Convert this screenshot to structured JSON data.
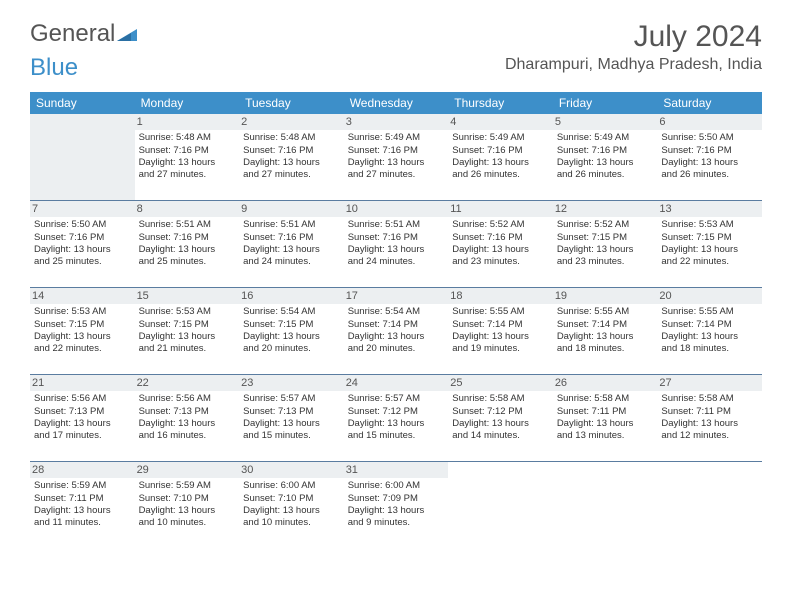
{
  "logo": {
    "text1": "General",
    "text2": "Blue"
  },
  "title": "July 2024",
  "location": "Dharampuri, Madhya Pradesh, India",
  "colors": {
    "header_bg": "#3d8fc9",
    "header_text": "#ffffff",
    "daynum_bg": "#eceff1",
    "border": "#5a7ca0",
    "text": "#333333",
    "title_text": "#555555"
  },
  "fonts": {
    "title_size_pt": 22,
    "location_size_pt": 12,
    "dayheader_size_pt": 9,
    "cell_size_pt": 7
  },
  "day_headers": [
    "Sunday",
    "Monday",
    "Tuesday",
    "Wednesday",
    "Thursday",
    "Friday",
    "Saturday"
  ],
  "weeks": [
    [
      null,
      {
        "n": "1",
        "sr": "Sunrise: 5:48 AM",
        "ss": "Sunset: 7:16 PM",
        "d1": "Daylight: 13 hours",
        "d2": "and 27 minutes."
      },
      {
        "n": "2",
        "sr": "Sunrise: 5:48 AM",
        "ss": "Sunset: 7:16 PM",
        "d1": "Daylight: 13 hours",
        "d2": "and 27 minutes."
      },
      {
        "n": "3",
        "sr": "Sunrise: 5:49 AM",
        "ss": "Sunset: 7:16 PM",
        "d1": "Daylight: 13 hours",
        "d2": "and 27 minutes."
      },
      {
        "n": "4",
        "sr": "Sunrise: 5:49 AM",
        "ss": "Sunset: 7:16 PM",
        "d1": "Daylight: 13 hours",
        "d2": "and 26 minutes."
      },
      {
        "n": "5",
        "sr": "Sunrise: 5:49 AM",
        "ss": "Sunset: 7:16 PM",
        "d1": "Daylight: 13 hours",
        "d2": "and 26 minutes."
      },
      {
        "n": "6",
        "sr": "Sunrise: 5:50 AM",
        "ss": "Sunset: 7:16 PM",
        "d1": "Daylight: 13 hours",
        "d2": "and 26 minutes."
      }
    ],
    [
      {
        "n": "7",
        "sr": "Sunrise: 5:50 AM",
        "ss": "Sunset: 7:16 PM",
        "d1": "Daylight: 13 hours",
        "d2": "and 25 minutes."
      },
      {
        "n": "8",
        "sr": "Sunrise: 5:51 AM",
        "ss": "Sunset: 7:16 PM",
        "d1": "Daylight: 13 hours",
        "d2": "and 25 minutes."
      },
      {
        "n": "9",
        "sr": "Sunrise: 5:51 AM",
        "ss": "Sunset: 7:16 PM",
        "d1": "Daylight: 13 hours",
        "d2": "and 24 minutes."
      },
      {
        "n": "10",
        "sr": "Sunrise: 5:51 AM",
        "ss": "Sunset: 7:16 PM",
        "d1": "Daylight: 13 hours",
        "d2": "and 24 minutes."
      },
      {
        "n": "11",
        "sr": "Sunrise: 5:52 AM",
        "ss": "Sunset: 7:16 PM",
        "d1": "Daylight: 13 hours",
        "d2": "and 23 minutes."
      },
      {
        "n": "12",
        "sr": "Sunrise: 5:52 AM",
        "ss": "Sunset: 7:15 PM",
        "d1": "Daylight: 13 hours",
        "d2": "and 23 minutes."
      },
      {
        "n": "13",
        "sr": "Sunrise: 5:53 AM",
        "ss": "Sunset: 7:15 PM",
        "d1": "Daylight: 13 hours",
        "d2": "and 22 minutes."
      }
    ],
    [
      {
        "n": "14",
        "sr": "Sunrise: 5:53 AM",
        "ss": "Sunset: 7:15 PM",
        "d1": "Daylight: 13 hours",
        "d2": "and 22 minutes."
      },
      {
        "n": "15",
        "sr": "Sunrise: 5:53 AM",
        "ss": "Sunset: 7:15 PM",
        "d1": "Daylight: 13 hours",
        "d2": "and 21 minutes."
      },
      {
        "n": "16",
        "sr": "Sunrise: 5:54 AM",
        "ss": "Sunset: 7:15 PM",
        "d1": "Daylight: 13 hours",
        "d2": "and 20 minutes."
      },
      {
        "n": "17",
        "sr": "Sunrise: 5:54 AM",
        "ss": "Sunset: 7:14 PM",
        "d1": "Daylight: 13 hours",
        "d2": "and 20 minutes."
      },
      {
        "n": "18",
        "sr": "Sunrise: 5:55 AM",
        "ss": "Sunset: 7:14 PM",
        "d1": "Daylight: 13 hours",
        "d2": "and 19 minutes."
      },
      {
        "n": "19",
        "sr": "Sunrise: 5:55 AM",
        "ss": "Sunset: 7:14 PM",
        "d1": "Daylight: 13 hours",
        "d2": "and 18 minutes."
      },
      {
        "n": "20",
        "sr": "Sunrise: 5:55 AM",
        "ss": "Sunset: 7:14 PM",
        "d1": "Daylight: 13 hours",
        "d2": "and 18 minutes."
      }
    ],
    [
      {
        "n": "21",
        "sr": "Sunrise: 5:56 AM",
        "ss": "Sunset: 7:13 PM",
        "d1": "Daylight: 13 hours",
        "d2": "and 17 minutes."
      },
      {
        "n": "22",
        "sr": "Sunrise: 5:56 AM",
        "ss": "Sunset: 7:13 PM",
        "d1": "Daylight: 13 hours",
        "d2": "and 16 minutes."
      },
      {
        "n": "23",
        "sr": "Sunrise: 5:57 AM",
        "ss": "Sunset: 7:13 PM",
        "d1": "Daylight: 13 hours",
        "d2": "and 15 minutes."
      },
      {
        "n": "24",
        "sr": "Sunrise: 5:57 AM",
        "ss": "Sunset: 7:12 PM",
        "d1": "Daylight: 13 hours",
        "d2": "and 15 minutes."
      },
      {
        "n": "25",
        "sr": "Sunrise: 5:58 AM",
        "ss": "Sunset: 7:12 PM",
        "d1": "Daylight: 13 hours",
        "d2": "and 14 minutes."
      },
      {
        "n": "26",
        "sr": "Sunrise: 5:58 AM",
        "ss": "Sunset: 7:11 PM",
        "d1": "Daylight: 13 hours",
        "d2": "and 13 minutes."
      },
      {
        "n": "27",
        "sr": "Sunrise: 5:58 AM",
        "ss": "Sunset: 7:11 PM",
        "d1": "Daylight: 13 hours",
        "d2": "and 12 minutes."
      }
    ],
    [
      {
        "n": "28",
        "sr": "Sunrise: 5:59 AM",
        "ss": "Sunset: 7:11 PM",
        "d1": "Daylight: 13 hours",
        "d2": "and 11 minutes."
      },
      {
        "n": "29",
        "sr": "Sunrise: 5:59 AM",
        "ss": "Sunset: 7:10 PM",
        "d1": "Daylight: 13 hours",
        "d2": "and 10 minutes."
      },
      {
        "n": "30",
        "sr": "Sunrise: 6:00 AM",
        "ss": "Sunset: 7:10 PM",
        "d1": "Daylight: 13 hours",
        "d2": "and 10 minutes."
      },
      {
        "n": "31",
        "sr": "Sunrise: 6:00 AM",
        "ss": "Sunset: 7:09 PM",
        "d1": "Daylight: 13 hours",
        "d2": "and 9 minutes."
      },
      null,
      null,
      null
    ]
  ]
}
